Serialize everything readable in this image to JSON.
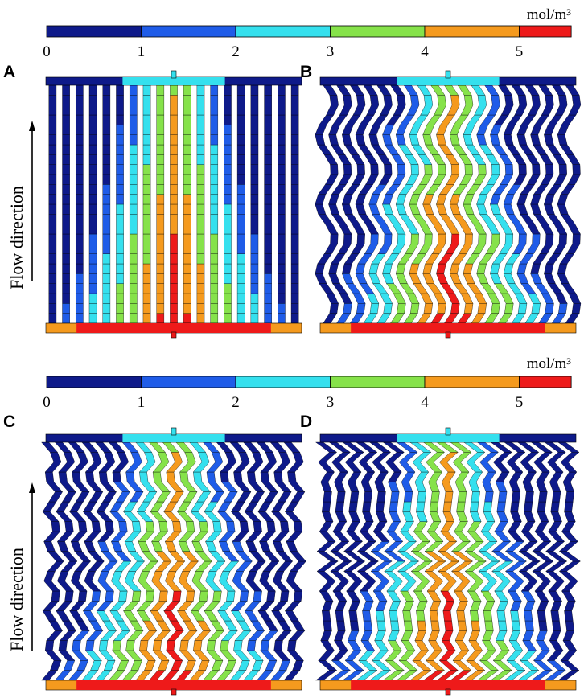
{
  "colorbar": {
    "unit": "mol/m³",
    "ticks": [
      "0",
      "1",
      "2",
      "3",
      "4",
      "5"
    ],
    "bands": [
      {
        "from": 0,
        "to": 1,
        "color": "#0e1a8a"
      },
      {
        "from": 1,
        "to": 2,
        "color": "#1f5ce8"
      },
      {
        "from": 2,
        "to": 3,
        "color": "#35e0ee"
      },
      {
        "from": 3,
        "to": 4,
        "color": "#86e24a"
      },
      {
        "from": 4,
        "to": 5,
        "color": "#f59a1e"
      },
      {
        "from": 5,
        "to": 5.55,
        "color": "#ee1a1a"
      }
    ]
  },
  "palette": [
    "#0e1a8a",
    "#1f5ce8",
    "#35e0ee",
    "#86e24a",
    "#f59a1e",
    "#ee1a1a"
  ],
  "flow_label": "Flow direction",
  "panels": [
    {
      "label": "A",
      "channel_shape": "straight"
    },
    {
      "label": "B",
      "channel_shape": "wavy"
    },
    {
      "label": "C",
      "channel_shape": "zigzag"
    },
    {
      "label": "D",
      "channel_shape": "fine-zigzag"
    }
  ]
}
